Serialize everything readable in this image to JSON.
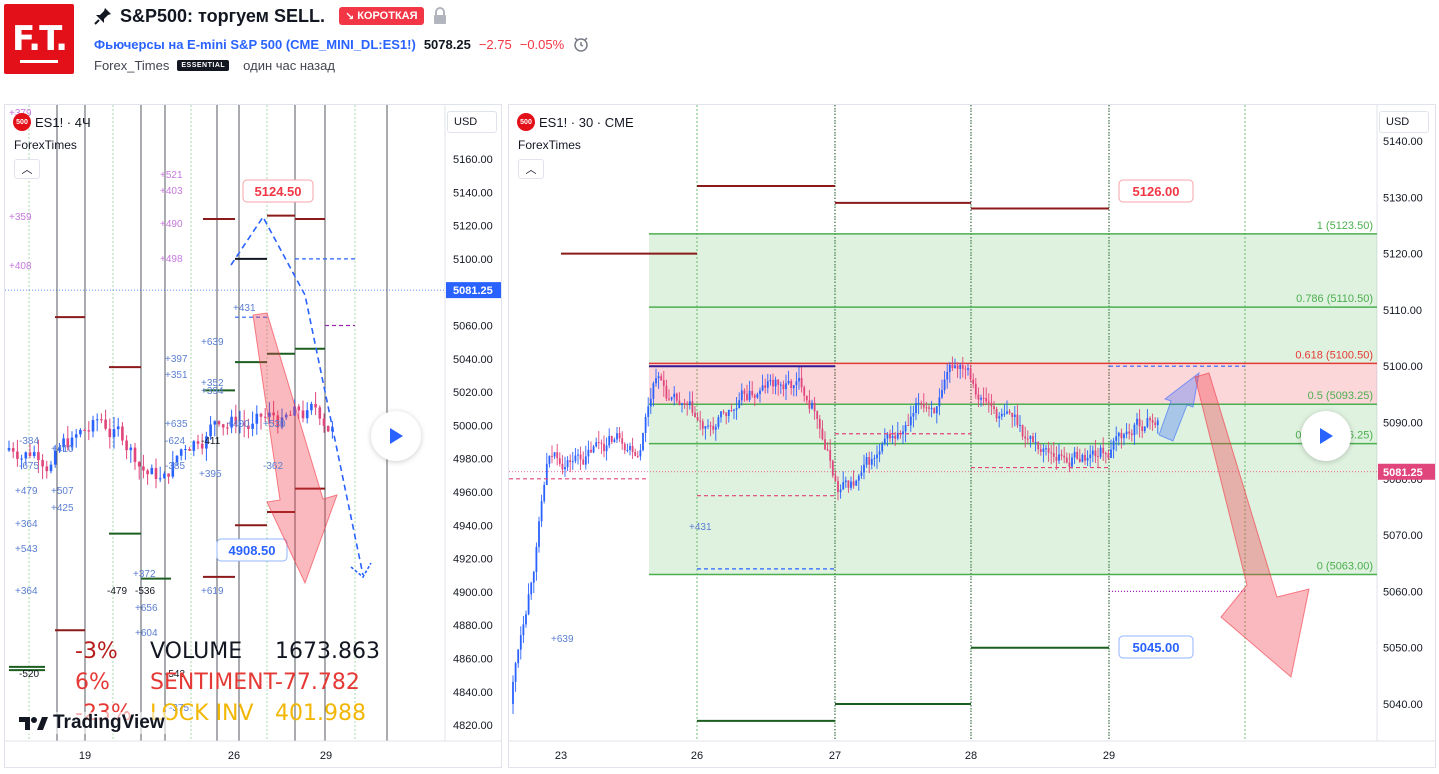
{
  "header": {
    "logo_text": "F.T.",
    "title": "S&P500: торгуем SELL.",
    "badge": "КОРОТКАЯ",
    "instrument": "Фьючерсы на E-mini S&P 500",
    "instrument_code": "(CME_MINI_DL:ES1!)",
    "price": "5078.25",
    "change": "−2.75",
    "change_pct": "−0.05%",
    "author": "Forex_Times",
    "author_badge": "ESSENTIAL",
    "published": "один час назад"
  },
  "left_chart": {
    "symbol": "ES1! · 4Ч",
    "icon_text": "500",
    "author": "ForexTimes",
    "currency": "USD",
    "price_ticks": [
      "5160.00",
      "5140.00",
      "5120.00",
      "5100.00",
      "5080.00",
      "5060.00",
      "5040.00",
      "5020.00",
      "5000.00",
      "4980.00",
      "4960.00",
      "4940.00",
      "4920.00",
      "4900.00",
      "4880.00",
      "4860.00",
      "4840.00",
      "4820.00"
    ],
    "date_ticks": [
      "19",
      "26",
      "29"
    ],
    "current_price": "5081.25",
    "label_high": "5124.50",
    "label_low": "4908.50",
    "watermark": "TradingView",
    "stats": [
      {
        "pct": "-3%",
        "label": "VOLUME",
        "value": "1673.863",
        "color": "#b71c1c"
      },
      {
        "pct": "6%",
        "label": "SENTIMENT",
        "value": "-77.782",
        "color": "#e53935"
      },
      {
        "pct": "-23%",
        "label": "LOCK INV",
        "value": "401.988",
        "color": "#f2b705"
      }
    ]
  },
  "right_chart": {
    "symbol": "ES1! · 30 · CME",
    "icon_text": "500",
    "author": "ForexTimes",
    "currency": "USD",
    "price_ticks": [
      "5140.00",
      "5130.00",
      "5120.00",
      "5110.00",
      "5100.00",
      "5090.00",
      "5080.00",
      "5070.00",
      "5060.00",
      "5050.00",
      "5040.00"
    ],
    "date_ticks": [
      "23",
      "26",
      "27",
      "28",
      "29"
    ],
    "current_price": "5081.25",
    "label_high": "5126.00",
    "label_low": "5045.00",
    "fib_levels": [
      {
        "label": "1 (5123.50)"
      },
      {
        "label": "0.786 (5110.50)"
      },
      {
        "label": "0.618 (5100.50)"
      },
      {
        "label": "0.5 (5093.25)"
      },
      {
        "label": "0.382 (5086.25)"
      },
      {
        "label": "0 (5063.00)"
      }
    ],
    "annotations": [
      "+431",
      "+639"
    ]
  },
  "colors": {
    "up": "#2962ff",
    "down": "#e0457b",
    "accent_red": "#f23645",
    "fib_green": "#4caf50",
    "fib_red": "#e53935"
  }
}
